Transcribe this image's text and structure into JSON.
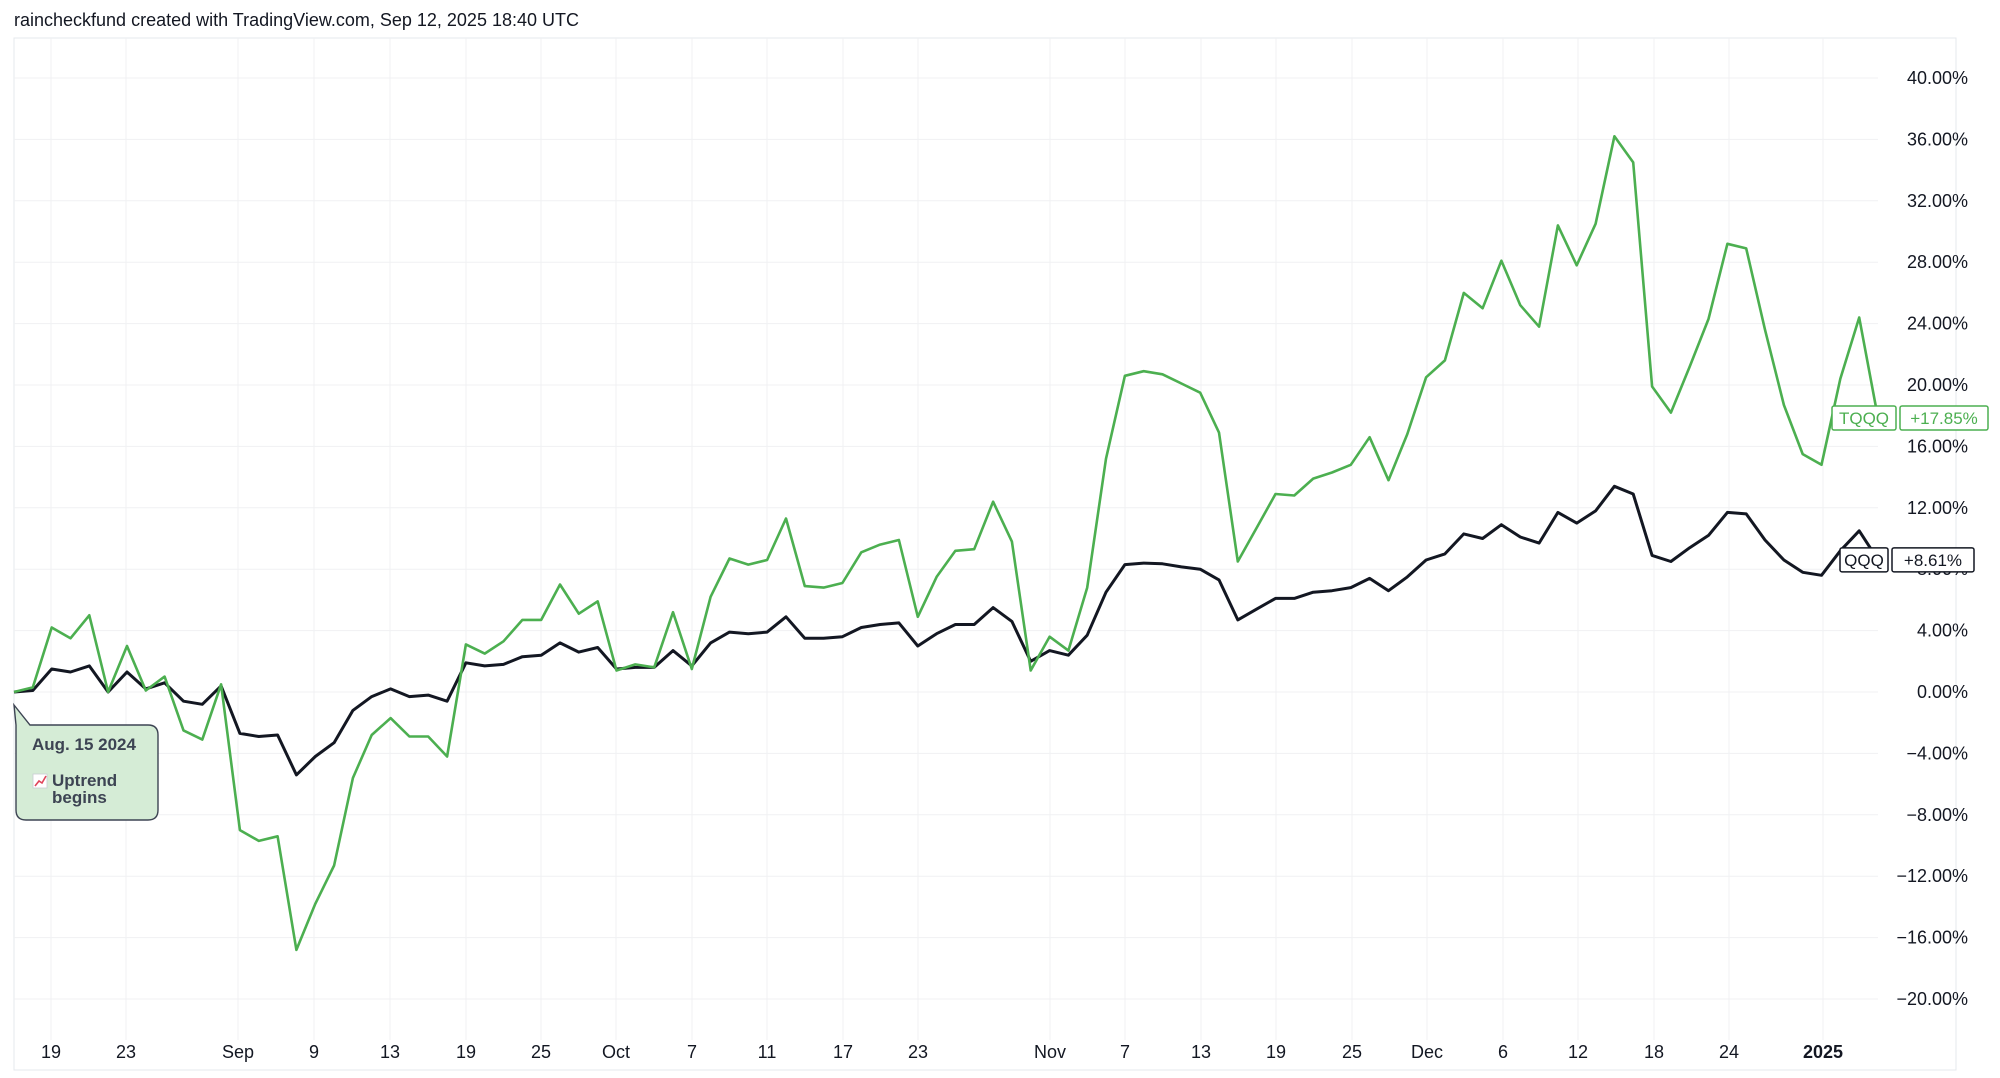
{
  "attribution": "raincheckfund created with TradingView.com, Sep 12, 2025 18:40 UTC",
  "chart_data": {
    "type": "line",
    "y_unit": "%",
    "ylim": [
      -22,
      42
    ],
    "y_ticks": [
      "40.00%",
      "36.00%",
      "32.00%",
      "28.00%",
      "24.00%",
      "20.00%",
      "16.00%",
      "12.00%",
      "8.00%",
      "4.00%",
      "0.00%",
      "−4.00%",
      "−8.00%",
      "−12.00%",
      "−16.00%",
      "−20.00%"
    ],
    "x_ticks": [
      {
        "label": "19",
        "bold": false
      },
      {
        "label": "23",
        "bold": false
      },
      {
        "label": "Sep",
        "bold": false
      },
      {
        "label": "9",
        "bold": false
      },
      {
        "label": "13",
        "bold": false
      },
      {
        "label": "19",
        "bold": false
      },
      {
        "label": "25",
        "bold": false
      },
      {
        "label": "Oct",
        "bold": false
      },
      {
        "label": "7",
        "bold": false
      },
      {
        "label": "11",
        "bold": false
      },
      {
        "label": "17",
        "bold": false
      },
      {
        "label": "23",
        "bold": false
      },
      {
        "label": "Nov",
        "bold": false
      },
      {
        "label": "7",
        "bold": false
      },
      {
        "label": "13",
        "bold": false
      },
      {
        "label": "19",
        "bold": false
      },
      {
        "label": "25",
        "bold": false
      },
      {
        "label": "Dec",
        "bold": false
      },
      {
        "label": "6",
        "bold": false
      },
      {
        "label": "12",
        "bold": false
      },
      {
        "label": "18",
        "bold": false
      },
      {
        "label": "24",
        "bold": false
      },
      {
        "label": "2025",
        "bold": true
      }
    ],
    "grid": true,
    "series": [
      {
        "name": "TQQQ",
        "color": "#4caf50",
        "last_value_label": "+17.85%",
        "values": [
          0,
          0.3,
          4.2,
          3.5,
          5,
          0,
          3,
          0.1,
          1,
          -2.5,
          -3.1,
          0.5,
          -9,
          -9.7,
          -9.4,
          -16.8,
          -13.8,
          -11.3,
          -5.6,
          -2.8,
          -1.7,
          -2.9,
          -2.9,
          -4.2,
          3.1,
          2.5,
          3.3,
          4.7,
          4.7,
          7,
          5.1,
          5.9,
          1.4,
          1.8,
          1.6,
          5.2,
          1.5,
          6.2,
          8.7,
          8.3,
          8.6,
          11.3,
          6.9,
          6.8,
          7.1,
          9.1,
          9.6,
          9.9,
          4.9,
          7.5,
          9.2,
          9.3,
          12.4,
          9.8,
          1.4,
          3.6,
          2.7,
          6.8,
          15.2,
          20.6,
          20.9,
          20.7,
          20.1,
          19.5,
          16.9,
          8.5,
          10.7,
          12.9,
          12.8,
          13.9,
          14.3,
          14.8,
          16.6,
          13.8,
          16.8,
          20.5,
          21.6,
          26,
          25,
          28.1,
          25.2,
          23.8,
          30.4,
          27.8,
          30.5,
          36.2,
          34.5,
          19.9,
          18.2,
          21.2,
          24.3,
          29.2,
          28.9,
          23.6,
          18.7,
          15.5,
          14.8,
          20.4,
          24.4,
          17.85
        ]
      },
      {
        "name": "QQQ",
        "color": "#131722",
        "last_value_label": "+8.61%",
        "values": [
          0,
          0.1,
          1.5,
          1.3,
          1.7,
          0,
          1.3,
          0.2,
          0.6,
          -0.6,
          -0.8,
          0.4,
          -2.7,
          -2.9,
          -2.8,
          -5.4,
          -4.2,
          -3.3,
          -1.2,
          -0.3,
          0.2,
          -0.3,
          -0.2,
          -0.6,
          1.9,
          1.7,
          1.8,
          2.3,
          2.4,
          3.2,
          2.6,
          2.9,
          1.5,
          1.6,
          1.6,
          2.7,
          1.7,
          3.2,
          3.9,
          3.8,
          3.9,
          4.9,
          3.5,
          3.5,
          3.6,
          4.2,
          4.4,
          4.5,
          3,
          3.8,
          4.4,
          4.4,
          5.5,
          4.6,
          2,
          2.7,
          2.4,
          3.7,
          6.5,
          8.3,
          8.4,
          8.35,
          8.15,
          8,
          7.3,
          4.7,
          5.4,
          6.1,
          6.1,
          6.5,
          6.6,
          6.8,
          7.4,
          6.6,
          7.5,
          8.6,
          9,
          10.3,
          10,
          10.9,
          10.1,
          9.7,
          11.7,
          11,
          11.8,
          13.4,
          12.9,
          8.9,
          8.5,
          9.4,
          10.2,
          11.7,
          11.6,
          9.9,
          8.6,
          7.8,
          7.6,
          9.2,
          10.5,
          8.61
        ]
      }
    ],
    "annotation": {
      "date": "Aug. 15 2024",
      "icon": "chart-increasing-icon",
      "text_line1": "Uptrend",
      "text_line2": "begins"
    }
  }
}
